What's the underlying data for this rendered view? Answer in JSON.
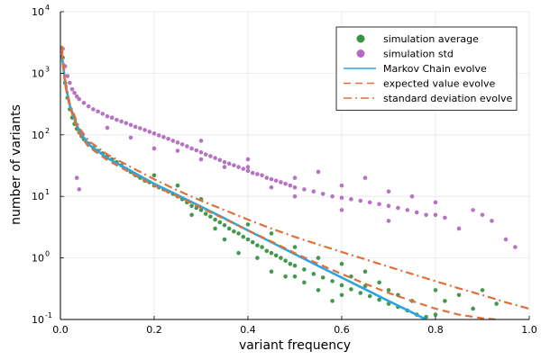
{
  "chart_data": {
    "type": "scatter",
    "xlabel": "variant frequency",
    "ylabel": "number of variants",
    "xlim": [
      0.0,
      1.0
    ],
    "ylim": [
      0.1,
      10000
    ],
    "y_scale": "log10",
    "grid": true,
    "legend_position": "top-right",
    "x_ticks": [
      0.0,
      0.2,
      0.4,
      0.6,
      0.8,
      1.0
    ],
    "x_tick_labels": [
      "0.0",
      "0.2",
      "0.4",
      "0.6",
      "0.8",
      "1.0"
    ],
    "y_ticks": [
      0.1,
      1,
      10,
      100,
      1000,
      10000
    ],
    "y_tick_labels": [
      {
        "base": "10",
        "exp": "-1"
      },
      {
        "base": "10",
        "exp": "0"
      },
      {
        "base": "10",
        "exp": "1"
      },
      {
        "base": "10",
        "exp": "2"
      },
      {
        "base": "10",
        "exp": "3"
      },
      {
        "base": "10",
        "exp": "4"
      }
    ],
    "series": [
      {
        "name": "simulation average",
        "kind": "scatter",
        "color": "#3a9245",
        "points": [
          [
            0.005,
            1800
          ],
          [
            0.01,
            700
          ],
          [
            0.015,
            400
          ],
          [
            0.02,
            260
          ],
          [
            0.025,
            190
          ],
          [
            0.03,
            150
          ],
          [
            0.035,
            125
          ],
          [
            0.04,
            110
          ],
          [
            0.045,
            95
          ],
          [
            0.05,
            85
          ],
          [
            0.06,
            72
          ],
          [
            0.07,
            62
          ],
          [
            0.08,
            55
          ],
          [
            0.09,
            50
          ],
          [
            0.1,
            45
          ],
          [
            0.11,
            40
          ],
          [
            0.12,
            36
          ],
          [
            0.13,
            32
          ],
          [
            0.14,
            28
          ],
          [
            0.15,
            25
          ],
          [
            0.16,
            22
          ],
          [
            0.17,
            20
          ],
          [
            0.18,
            18
          ],
          [
            0.19,
            17
          ],
          [
            0.2,
            15
          ],
          [
            0.21,
            14
          ],
          [
            0.22,
            13
          ],
          [
            0.23,
            12
          ],
          [
            0.24,
            11
          ],
          [
            0.25,
            10
          ],
          [
            0.26,
            9
          ],
          [
            0.27,
            8
          ],
          [
            0.28,
            7
          ],
          [
            0.29,
            6.5
          ],
          [
            0.3,
            6
          ],
          [
            0.31,
            5.2
          ],
          [
            0.32,
            4.7
          ],
          [
            0.33,
            4.2
          ],
          [
            0.34,
            3.8
          ],
          [
            0.35,
            3.4
          ],
          [
            0.36,
            3.0
          ],
          [
            0.37,
            2.7
          ],
          [
            0.38,
            2.5
          ],
          [
            0.39,
            2.2
          ],
          [
            0.4,
            2.0
          ],
          [
            0.41,
            1.8
          ],
          [
            0.42,
            1.6
          ],
          [
            0.43,
            1.5
          ],
          [
            0.44,
            1.3
          ],
          [
            0.45,
            1.2
          ],
          [
            0.46,
            1.1
          ],
          [
            0.47,
            1.0
          ],
          [
            0.48,
            0.9
          ],
          [
            0.49,
            0.8
          ],
          [
            0.5,
            0.75
          ],
          [
            0.52,
            0.65
          ],
          [
            0.54,
            0.55
          ],
          [
            0.56,
            0.48
          ],
          [
            0.58,
            0.42
          ],
          [
            0.6,
            0.36
          ],
          [
            0.62,
            0.31
          ],
          [
            0.64,
            0.27
          ],
          [
            0.66,
            0.24
          ],
          [
            0.68,
            0.21
          ],
          [
            0.7,
            0.18
          ],
          [
            0.72,
            0.16
          ],
          [
            0.74,
            0.14
          ],
          [
            0.76,
            0.12
          ],
          [
            0.78,
            0.11
          ],
          [
            0.8,
            0.3
          ],
          [
            0.82,
            0.2
          ],
          [
            0.85,
            0.25
          ],
          [
            0.88,
            0.15
          ],
          [
            0.9,
            0.3
          ],
          [
            0.93,
            0.18
          ],
          [
            0.35,
            2.0
          ],
          [
            0.38,
            1.2
          ],
          [
            0.42,
            1.0
          ],
          [
            0.45,
            0.6
          ],
          [
            0.5,
            0.5
          ],
          [
            0.55,
            0.3
          ],
          [
            0.6,
            0.25
          ],
          [
            0.65,
            0.35
          ],
          [
            0.7,
            0.3
          ],
          [
            0.4,
            3.5
          ],
          [
            0.45,
            2.5
          ],
          [
            0.5,
            1.5
          ],
          [
            0.55,
            1.0
          ],
          [
            0.6,
            0.8
          ],
          [
            0.65,
            0.6
          ],
          [
            0.3,
            9
          ],
          [
            0.25,
            15
          ],
          [
            0.2,
            22
          ],
          [
            0.33,
            3.0
          ],
          [
            0.28,
            5.0
          ],
          [
            0.48,
            0.5
          ],
          [
            0.52,
            0.4
          ],
          [
            0.58,
            0.2
          ],
          [
            0.62,
            0.5
          ],
          [
            0.68,
            0.4
          ],
          [
            0.72,
            0.25
          ],
          [
            0.75,
            0.2
          ],
          [
            0.8,
            0.12
          ]
        ]
      },
      {
        "name": "simulation std",
        "kind": "scatter",
        "color": "#b26cc0",
        "points": [
          [
            0.005,
            2500
          ],
          [
            0.01,
            1300
          ],
          [
            0.015,
            900
          ],
          [
            0.02,
            700
          ],
          [
            0.025,
            550
          ],
          [
            0.03,
            480
          ],
          [
            0.035,
            420
          ],
          [
            0.04,
            380
          ],
          [
            0.05,
            330
          ],
          [
            0.06,
            290
          ],
          [
            0.07,
            260
          ],
          [
            0.08,
            240
          ],
          [
            0.09,
            220
          ],
          [
            0.1,
            200
          ],
          [
            0.11,
            190
          ],
          [
            0.12,
            175
          ],
          [
            0.13,
            165
          ],
          [
            0.14,
            155
          ],
          [
            0.15,
            145
          ],
          [
            0.16,
            135
          ],
          [
            0.17,
            128
          ],
          [
            0.18,
            120
          ],
          [
            0.19,
            112
          ],
          [
            0.2,
            105
          ],
          [
            0.21,
            98
          ],
          [
            0.22,
            92
          ],
          [
            0.23,
            86
          ],
          [
            0.24,
            80
          ],
          [
            0.25,
            75
          ],
          [
            0.26,
            70
          ],
          [
            0.27,
            65
          ],
          [
            0.28,
            60
          ],
          [
            0.29,
            56
          ],
          [
            0.3,
            52
          ],
          [
            0.31,
            48
          ],
          [
            0.32,
            45
          ],
          [
            0.33,
            42
          ],
          [
            0.34,
            39
          ],
          [
            0.35,
            36
          ],
          [
            0.36,
            34
          ],
          [
            0.37,
            32
          ],
          [
            0.38,
            30
          ],
          [
            0.39,
            28
          ],
          [
            0.4,
            26
          ],
          [
            0.41,
            24
          ],
          [
            0.42,
            23
          ],
          [
            0.43,
            22
          ],
          [
            0.44,
            20
          ],
          [
            0.45,
            19
          ],
          [
            0.46,
            18
          ],
          [
            0.47,
            17
          ],
          [
            0.48,
            16
          ],
          [
            0.49,
            15
          ],
          [
            0.5,
            14
          ],
          [
            0.52,
            13
          ],
          [
            0.54,
            12
          ],
          [
            0.56,
            11
          ],
          [
            0.58,
            10
          ],
          [
            0.6,
            9.5
          ],
          [
            0.62,
            9
          ],
          [
            0.64,
            8.5
          ],
          [
            0.66,
            8
          ],
          [
            0.68,
            7.5
          ],
          [
            0.7,
            7
          ],
          [
            0.72,
            6.5
          ],
          [
            0.74,
            6
          ],
          [
            0.76,
            5.5
          ],
          [
            0.78,
            5
          ],
          [
            0.8,
            5
          ],
          [
            0.82,
            4.5
          ],
          [
            0.85,
            3
          ],
          [
            0.88,
            6
          ],
          [
            0.9,
            5
          ],
          [
            0.92,
            4
          ],
          [
            0.95,
            2
          ],
          [
            0.97,
            1.5
          ],
          [
            0.035,
            20
          ],
          [
            0.04,
            13
          ],
          [
            0.2,
            60
          ],
          [
            0.25,
            55
          ],
          [
            0.3,
            40
          ],
          [
            0.35,
            30
          ],
          [
            0.4,
            30
          ],
          [
            0.45,
            14
          ],
          [
            0.5,
            20
          ],
          [
            0.55,
            25
          ],
          [
            0.6,
            15
          ],
          [
            0.65,
            20
          ],
          [
            0.7,
            12
          ],
          [
            0.75,
            10
          ],
          [
            0.8,
            8
          ],
          [
            0.15,
            90
          ],
          [
            0.1,
            130
          ],
          [
            0.3,
            80
          ],
          [
            0.4,
            40
          ],
          [
            0.5,
            10
          ],
          [
            0.6,
            6
          ],
          [
            0.7,
            4
          ]
        ]
      },
      {
        "name": "Markov Chain evolve",
        "kind": "line",
        "color": "#2ca6e0",
        "line_style": "solid",
        "points": [
          [
            0.003,
            2000
          ],
          [
            0.01,
            700
          ],
          [
            0.02,
            300
          ],
          [
            0.04,
            115
          ],
          [
            0.06,
            70
          ],
          [
            0.1,
            42
          ],
          [
            0.15,
            26
          ],
          [
            0.2,
            16
          ],
          [
            0.25,
            10.5
          ],
          [
            0.3,
            6.8
          ],
          [
            0.35,
            4.4
          ],
          [
            0.4,
            2.8
          ],
          [
            0.45,
            1.8
          ],
          [
            0.5,
            1.15
          ],
          [
            0.55,
            0.74
          ],
          [
            0.6,
            0.48
          ],
          [
            0.65,
            0.31
          ],
          [
            0.7,
            0.2
          ],
          [
            0.75,
            0.13
          ],
          [
            0.78,
            0.1
          ]
        ]
      },
      {
        "name": "expected value evolve",
        "kind": "line",
        "color": "#e0703a",
        "line_style": "dashed",
        "points": [
          [
            0.003,
            2300
          ],
          [
            0.01,
            650
          ],
          [
            0.02,
            280
          ],
          [
            0.04,
            105
          ],
          [
            0.06,
            64
          ],
          [
            0.1,
            39
          ],
          [
            0.15,
            24
          ],
          [
            0.2,
            15
          ],
          [
            0.25,
            10
          ],
          [
            0.3,
            6.5
          ],
          [
            0.35,
            4.3
          ],
          [
            0.4,
            2.8
          ],
          [
            0.45,
            1.85
          ],
          [
            0.5,
            1.2
          ],
          [
            0.55,
            0.8
          ],
          [
            0.6,
            0.55
          ],
          [
            0.65,
            0.38
          ],
          [
            0.7,
            0.27
          ],
          [
            0.75,
            0.2
          ],
          [
            0.8,
            0.15
          ],
          [
            0.85,
            0.12
          ],
          [
            0.9,
            0.105
          ],
          [
            0.93,
            0.1
          ]
        ]
      },
      {
        "name": "standard deviation evolve",
        "kind": "line",
        "color": "#e0703a",
        "line_style": "dashdot",
        "points": [
          [
            0.003,
            2800
          ],
          [
            0.01,
            800
          ],
          [
            0.02,
            320
          ],
          [
            0.04,
            130
          ],
          [
            0.06,
            80
          ],
          [
            0.1,
            48
          ],
          [
            0.15,
            30
          ],
          [
            0.2,
            19
          ],
          [
            0.25,
            12.5
          ],
          [
            0.3,
            8.5
          ],
          [
            0.35,
            6
          ],
          [
            0.4,
            4.2
          ],
          [
            0.45,
            3.0
          ],
          [
            0.5,
            2.2
          ],
          [
            0.55,
            1.65
          ],
          [
            0.6,
            1.25
          ],
          [
            0.65,
            0.95
          ],
          [
            0.7,
            0.72
          ],
          [
            0.75,
            0.55
          ],
          [
            0.8,
            0.42
          ],
          [
            0.85,
            0.32
          ],
          [
            0.9,
            0.25
          ],
          [
            0.95,
            0.19
          ],
          [
            1.0,
            0.15
          ]
        ]
      }
    ]
  }
}
